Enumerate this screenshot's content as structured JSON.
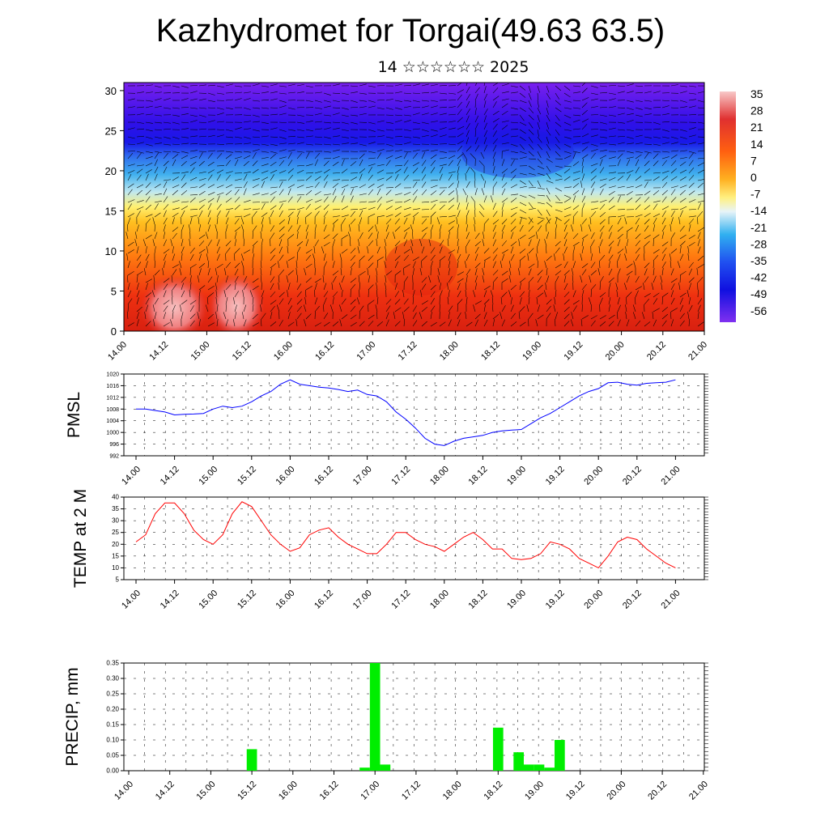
{
  "title": "Kazhydromet for Torgai(49.63 63.5)",
  "subtitle": "14 ☆☆☆☆☆☆ 2025",
  "time_labels": [
    "14.00",
    "14.12",
    "15.00",
    "15.12",
    "16.00",
    "16.12",
    "17.00",
    "17.12",
    "18.00",
    "18.12",
    "19.00",
    "19.12",
    "20.00",
    "20.12",
    "21.00"
  ],
  "colors": {
    "pmsl_line": "#0000ff",
    "temp_line": "#ff0000",
    "precip_bar": "#00ee00"
  },
  "chart_data": [
    {
      "type": "heatmap",
      "name": "temperature-wind-cross-section",
      "yticks": [
        0,
        5,
        10,
        15,
        20,
        25,
        30
      ],
      "ylim": [
        0,
        31
      ],
      "colorbar": {
        "labels": [
          "35",
          "28",
          "21",
          "14",
          "7",
          "0",
          "-7",
          "-14",
          "-21",
          "-28",
          "-35",
          "-42",
          "-49",
          "-56"
        ],
        "range": [
          -60,
          38
        ]
      },
      "vectors": "wind arrows (black)"
    },
    {
      "type": "line",
      "name": "pmsl",
      "ylabel": "PMSL",
      "ylim": [
        992,
        1020
      ],
      "yticks": [
        "992",
        "996",
        "1000",
        "1004",
        "1008",
        "1012",
        "1016",
        "1020"
      ],
      "x": [
        0,
        3,
        6,
        9,
        12,
        15,
        18,
        21,
        24,
        27,
        30,
        33,
        36,
        39,
        42,
        45,
        48,
        51,
        54,
        57,
        60,
        63,
        66,
        69,
        72,
        75,
        78,
        81,
        84,
        87,
        90,
        93,
        96,
        99,
        102,
        105,
        108,
        111,
        114,
        117,
        120,
        123,
        126,
        129,
        132,
        135,
        138,
        141,
        144,
        147,
        150,
        153,
        156,
        159,
        162,
        165,
        168
      ],
      "values": [
        1008,
        1008,
        1007.5,
        1007,
        1006,
        1006.2,
        1006.3,
        1006.5,
        1008,
        1009,
        1008.5,
        1009,
        1010.5,
        1012.5,
        1014,
        1016.5,
        1018,
        1016.5,
        1016,
        1015.5,
        1015.2,
        1014.7,
        1014,
        1014.5,
        1013,
        1012.5,
        1010.5,
        1007,
        1004.5,
        1001.5,
        998,
        996,
        995.5,
        997,
        998,
        998.5,
        999,
        1000,
        1000.5,
        1000.8,
        1001,
        1003,
        1005,
        1006.5,
        1008.5,
        1010.5,
        1012.5,
        1014,
        1015,
        1017,
        1017.2,
        1016.5,
        1016.2,
        1016.8,
        1017,
        1017.2,
        1018
      ]
    },
    {
      "type": "line",
      "name": "temp-2m",
      "ylabel": "TEMP at 2 M",
      "ylim": [
        5,
        40
      ],
      "yticks": [
        "5",
        "10",
        "15",
        "20",
        "25",
        "30",
        "35",
        "40"
      ],
      "x": [
        0,
        3,
        6,
        9,
        12,
        15,
        18,
        21,
        24,
        27,
        30,
        33,
        36,
        39,
        42,
        45,
        48,
        51,
        54,
        57,
        60,
        63,
        66,
        69,
        72,
        75,
        78,
        81,
        84,
        87,
        90,
        93,
        96,
        99,
        102,
        105,
        108,
        111,
        114,
        117,
        120,
        123,
        126,
        129,
        132,
        135,
        138,
        141,
        144,
        147,
        150,
        153,
        156,
        159,
        162,
        165,
        168
      ],
      "values": [
        21,
        24,
        33,
        37.5,
        37.5,
        33,
        26,
        22,
        20,
        24,
        33,
        38,
        36,
        30,
        24,
        20,
        17,
        18.5,
        24,
        26,
        27,
        23,
        20,
        18,
        16,
        16,
        20,
        25,
        25,
        22,
        20,
        19,
        17,
        20,
        23,
        25,
        22,
        18,
        18,
        14,
        13.5,
        14,
        16,
        21,
        20,
        18,
        14,
        12,
        10,
        15,
        21,
        23,
        22,
        18,
        15,
        12,
        10
      ]
    },
    {
      "type": "bar",
      "name": "precip",
      "ylabel": "PRECIP, mm",
      "ylim": [
        0,
        0.35
      ],
      "yticks": [
        "0.00",
        "0.05",
        "0.10",
        "0.15",
        "0.20",
        "0.25",
        "0.30",
        "0.35"
      ],
      "x": [
        36,
        69,
        72,
        75,
        108,
        114,
        117,
        120,
        123,
        126
      ],
      "values": [
        0.07,
        0.01,
        0.35,
        0.02,
        0.14,
        0.06,
        0.02,
        0.02,
        0.01,
        0.1
      ]
    }
  ]
}
